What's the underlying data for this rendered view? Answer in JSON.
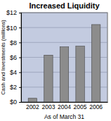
{
  "chart_data": {
    "type": "bar",
    "title": "Increased Liquidity",
    "x_label": "As of March 31",
    "y_label": "Cash and Investments (millions)",
    "categories": [
      "2002",
      "2003",
      "2004",
      "2005",
      "2006"
    ],
    "values": [
      0.5,
      6.3,
      7.4,
      7.5,
      10.4
    ],
    "color": "#8c8c8c",
    "ylim": [
      0,
      12
    ],
    "yticks": [
      {
        "value": 0,
        "label": "$0"
      },
      {
        "value": 2,
        "label": "$2"
      },
      {
        "value": 4,
        "label": "$4"
      },
      {
        "value": 6,
        "label": "$6"
      },
      {
        "value": 8,
        "label": "$8"
      },
      {
        "value": 10,
        "label": "$10"
      },
      {
        "value": 12,
        "label": "$12"
      }
    ],
    "grid": true
  }
}
